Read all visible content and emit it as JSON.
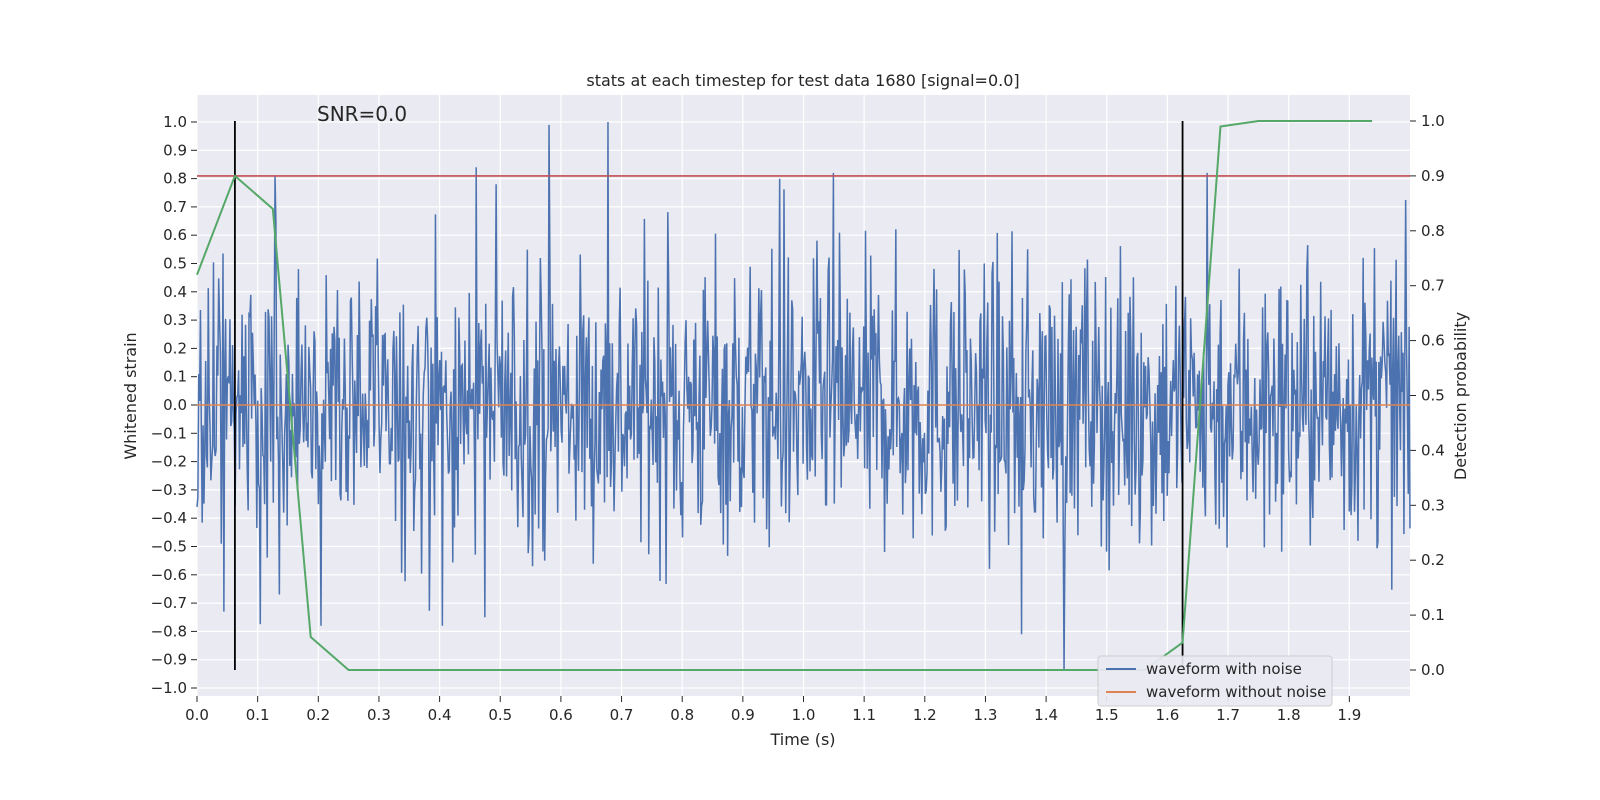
{
  "chart_data": {
    "type": "line",
    "title": "stats at each timestep for test data 1680 [signal=0.0]",
    "xlabel": "Time (s)",
    "ylabel": "Whitened strain",
    "y2label": "Detection probability",
    "xlim": [
      0.0,
      2.0
    ],
    "ylim": [
      -1.0,
      1.0
    ],
    "y2lim": [
      0.0,
      1.0
    ],
    "xticks": [
      "0.0",
      "0.1",
      "0.2",
      "0.3",
      "0.4",
      "0.5",
      "0.6",
      "0.7",
      "0.8",
      "0.9",
      "1.0",
      "1.1",
      "1.2",
      "1.3",
      "1.4",
      "1.5",
      "1.6",
      "1.7",
      "1.8",
      "1.9"
    ],
    "yticks": [
      "1.0",
      "0.9",
      "0.8",
      "0.7",
      "0.6",
      "0.5",
      "0.4",
      "0.3",
      "0.2",
      "0.1",
      "0.0",
      "−0.1",
      "−0.2",
      "−0.3",
      "−0.4",
      "−0.5",
      "−0.6",
      "−0.7",
      "−0.8",
      "−0.9",
      "−1.0"
    ],
    "y2ticks": [
      "1.0",
      "0.9",
      "0.8",
      "0.7",
      "0.6",
      "0.5",
      "0.4",
      "0.3",
      "0.2",
      "0.1",
      "0.0"
    ],
    "grid": true,
    "annotation": "SNR=0.0",
    "legend": {
      "placement": "lower-right",
      "entries": [
        "waveform with noise",
        "waveform without noise"
      ]
    },
    "series": [
      {
        "name": "waveform with noise",
        "axis": "left",
        "color": "#4c72b0",
        "x_range": [
          0.0,
          2.0
        ],
        "n_points": 1400,
        "envelope_typical": 0.45,
        "peaks": [
          {
            "x": 0.128,
            "y": 0.81
          },
          {
            "x": 0.46,
            "y": 0.84
          },
          {
            "x": 0.58,
            "y": 0.99
          },
          {
            "x": 0.677,
            "y": 1.0
          },
          {
            "x": 0.96,
            "y": 0.8
          },
          {
            "x": 1.05,
            "y": 0.82
          },
          {
            "x": 1.43,
            "y": -0.94
          },
          {
            "x": 1.665,
            "y": 0.82
          },
          {
            "x": 0.045,
            "y": -0.73
          },
          {
            "x": 0.475,
            "y": -0.75
          },
          {
            "x": 1.36,
            "y": -0.81
          }
        ]
      },
      {
        "name": "waveform without noise",
        "axis": "left",
        "color": "#dd8452",
        "x": [
          0.0,
          2.0
        ],
        "y": [
          0.0,
          0.0
        ]
      },
      {
        "name": "detection probability",
        "axis": "right",
        "color": "#55a868",
        "x": [
          0.0,
          0.0625,
          0.125,
          0.1875,
          0.25,
          1.5625,
          1.625,
          1.6875,
          1.75,
          1.9375
        ],
        "y": [
          0.72,
          0.9,
          0.84,
          0.06,
          0.0,
          0.0,
          0.05,
          0.99,
          1.0,
          1.0
        ]
      }
    ],
    "threshold": {
      "axis": "right",
      "value": 0.9,
      "color": "#c44e52"
    },
    "markers": {
      "x": [
        0.0625,
        1.625
      ],
      "ymin": 0.0,
      "ymax": 1.0,
      "axis": "right",
      "color": "#000000"
    }
  }
}
